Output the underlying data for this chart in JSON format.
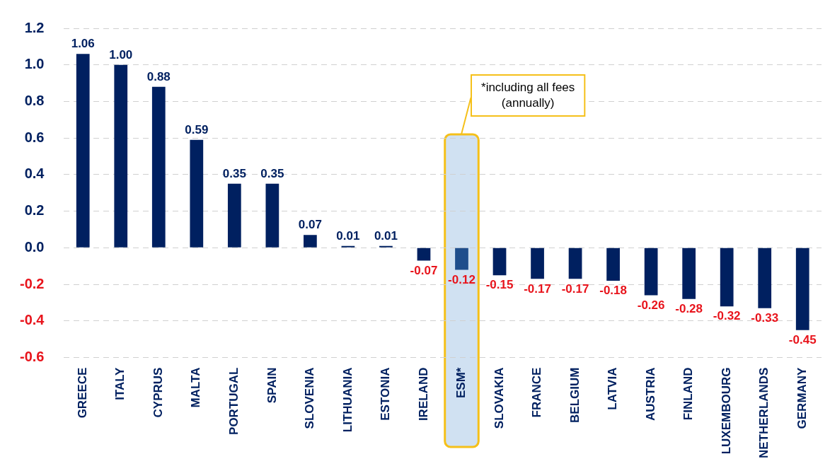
{
  "chart_data": {
    "type": "bar",
    "categories": [
      "GREECE",
      "ITALY",
      "CYPRUS",
      "MALTA",
      "PORTUGAL",
      "SPAIN",
      "SLOVENIA",
      "LITHUANIA",
      "ESTONIA",
      "IRELAND",
      "ESM*",
      "SLOVAKIA",
      "FRANCE",
      "BELGIUM",
      "LATVIA",
      "AUSTRIA",
      "FINLAND",
      "LUXEMBOURG",
      "NETHERLANDS",
      "GERMANY"
    ],
    "values": [
      1.06,
      1.0,
      0.88,
      0.59,
      0.35,
      0.35,
      0.07,
      0.01,
      0.01,
      -0.07,
      -0.12,
      -0.15,
      -0.17,
      -0.17,
      -0.18,
      -0.26,
      -0.28,
      -0.32,
      -0.33,
      -0.45
    ],
    "value_labels": [
      "1.06",
      "1.00",
      "0.88",
      "0.59",
      "0.35",
      "0.35",
      "0.07",
      "0.01",
      "0.01",
      "-0.07",
      "-0.12",
      "-0.15",
      "-0.17",
      "-0.17",
      "-0.18",
      "-0.26",
      "-0.28",
      "-0.32",
      "-0.33",
      "-0.45"
    ],
    "colors": [
      "#002060",
      "#002060",
      "#002060",
      "#002060",
      "#002060",
      "#002060",
      "#002060",
      "#002060",
      "#002060",
      "#002060",
      "#1f4e8c",
      "#002060",
      "#002060",
      "#002060",
      "#002060",
      "#002060",
      "#002060",
      "#002060",
      "#002060",
      "#002060"
    ],
    "ylim": [
      -0.6,
      1.2
    ],
    "yticks": [
      {
        "value": -0.6,
        "label": "-0.6"
      },
      {
        "value": -0.4,
        "label": "-0.4"
      },
      {
        "value": -0.2,
        "label": "-0.2"
      },
      {
        "value": 0,
        "label": "0.0"
      },
      {
        "value": 0.2,
        "label": "0.2"
      },
      {
        "value": 0.4,
        "label": "0.4"
      },
      {
        "value": 0.6,
        "label": "0.6"
      },
      {
        "value": 0.8,
        "label": "0.8"
      },
      {
        "value": 1,
        "label": "1.0"
      },
      {
        "value": 1.2,
        "label": "1.2"
      }
    ],
    "grid": "y",
    "bands": [
      {
        "axis": "x",
        "from": "ESM*",
        "to": "ESM*",
        "color": "#d0e1f2"
      }
    ],
    "annotations": [
      {
        "text": "*including all fees\n(annually)",
        "x": "ESM*",
        "y": 0.62
      }
    ]
  }
}
